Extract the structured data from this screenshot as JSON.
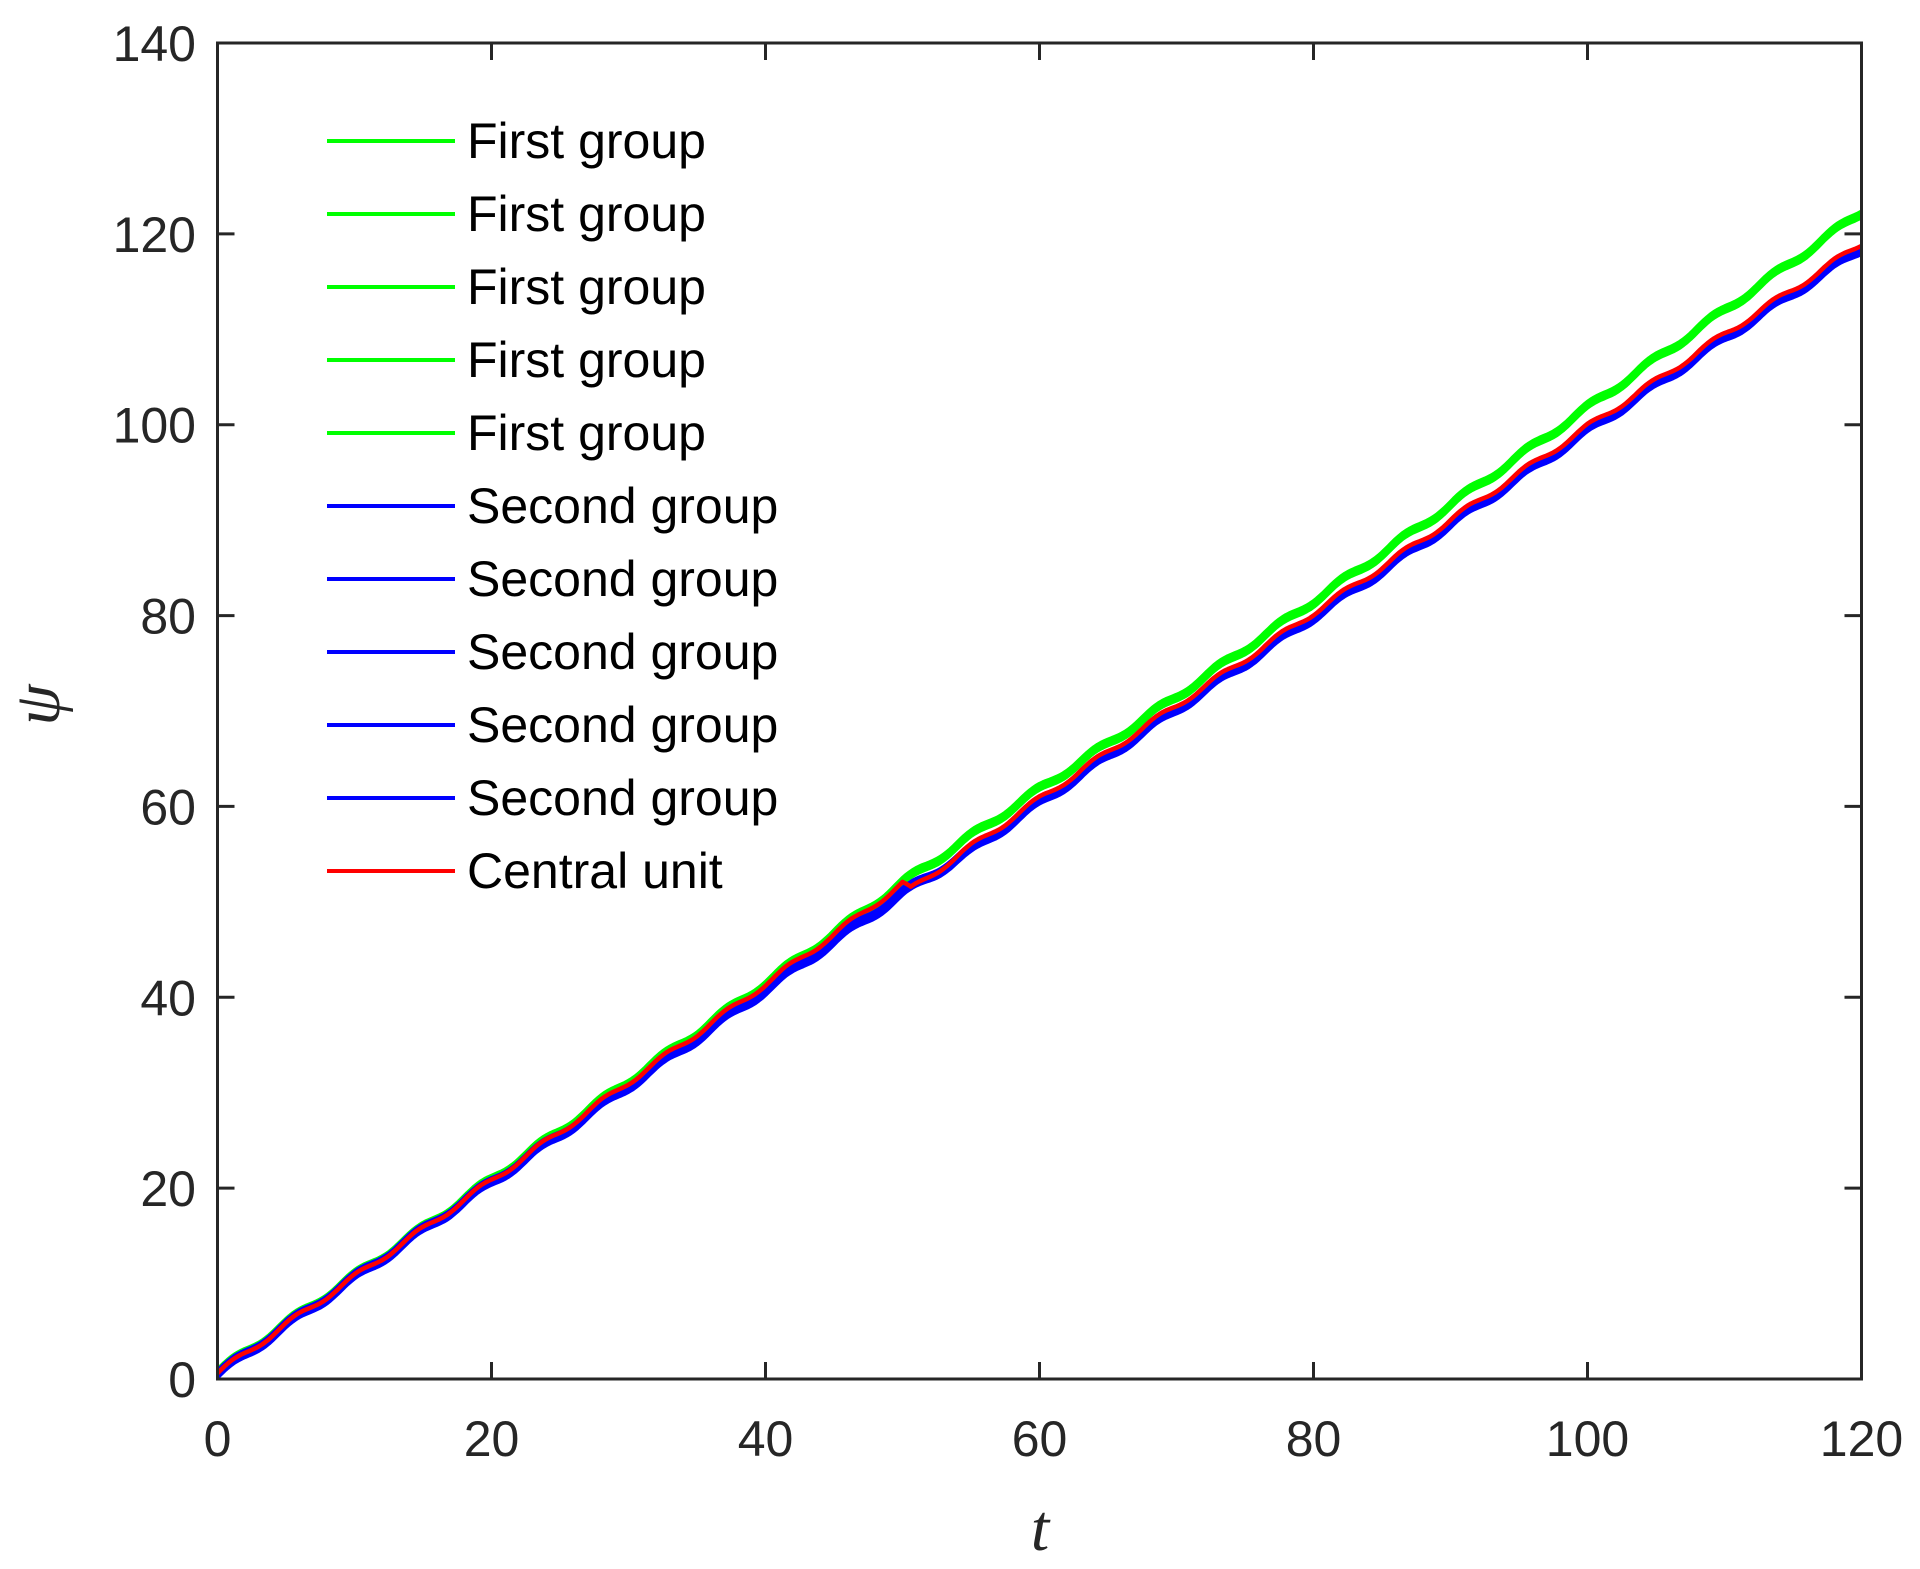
{
  "chart_data": {
    "type": "line",
    "title": "",
    "xlabel": "t",
    "ylabel": "ψ",
    "xlim": [
      0,
      120
    ],
    "ylim": [
      0,
      140
    ],
    "xticks": [
      0,
      20,
      40,
      60,
      80,
      100,
      120
    ],
    "yticks": [
      0,
      20,
      40,
      60,
      80,
      100,
      120,
      140
    ],
    "grid": false,
    "box": true,
    "tick_direction": "in",
    "legend_position": "upper-left-inside",
    "axis_color": "#262626",
    "background_color": "#ffffff",
    "wiggle": {
      "amplitude": 0.3,
      "period": 4.5
    },
    "series": [
      {
        "name": "First group",
        "color": "#00ff00",
        "count": 5,
        "spread": 0.55,
        "points": [
          [
            0,
            0.7
          ],
          [
            5,
            5.8
          ],
          [
            10,
            10.8
          ],
          [
            15,
            15.8
          ],
          [
            20,
            20.9
          ],
          [
            25,
            26.0
          ],
          [
            30,
            31.2
          ],
          [
            35,
            36.3
          ],
          [
            40,
            41.5
          ],
          [
            45,
            46.7
          ],
          [
            50,
            52.0
          ],
          [
            55,
            56.9
          ],
          [
            60,
            61.8
          ],
          [
            65,
            66.6
          ],
          [
            70,
            71.5
          ],
          [
            75,
            76.5
          ],
          [
            80,
            81.5
          ],
          [
            85,
            86.5
          ],
          [
            90,
            91.6
          ],
          [
            95,
            96.7
          ],
          [
            100,
            101.8
          ],
          [
            105,
            106.9
          ],
          [
            110,
            112.0
          ],
          [
            115,
            117.1
          ],
          [
            120,
            122.3
          ]
        ]
      },
      {
        "name": "Second group",
        "color": "#0000ff",
        "count": 5,
        "spread": 0.65,
        "points": [
          [
            0,
            0.5
          ],
          [
            5,
            5.6
          ],
          [
            10,
            10.6
          ],
          [
            15,
            15.6
          ],
          [
            20,
            20.6
          ],
          [
            25,
            25.6
          ],
          [
            30,
            30.7
          ],
          [
            35,
            35.7
          ],
          [
            40,
            40.8
          ],
          [
            45,
            45.9
          ],
          [
            50,
            50.9
          ],
          [
            55,
            55.4
          ],
          [
            60,
            60.4
          ],
          [
            65,
            65.3
          ],
          [
            70,
            70.2
          ],
          [
            75,
            75.0
          ],
          [
            80,
            79.9
          ],
          [
            85,
            84.7
          ],
          [
            90,
            89.6
          ],
          [
            95,
            94.5
          ],
          [
            100,
            99.4
          ],
          [
            105,
            104.2
          ],
          [
            110,
            109.1
          ],
          [
            115,
            113.8
          ],
          [
            120,
            118.5
          ]
        ]
      },
      {
        "name": "Central unit",
        "color": "#ff0000",
        "count": 1,
        "spread": 0,
        "points": [
          [
            0,
            0.6
          ],
          [
            5,
            5.7
          ],
          [
            10,
            10.7
          ],
          [
            15,
            15.7
          ],
          [
            20,
            20.8
          ],
          [
            25,
            25.9
          ],
          [
            30,
            31.1
          ],
          [
            35,
            36.2
          ],
          [
            40,
            41.4
          ],
          [
            45,
            46.6
          ],
          [
            50,
            51.9
          ],
          [
            50.6,
            51.3
          ],
          [
            55,
            55.8
          ],
          [
            60,
            60.8
          ],
          [
            65,
            65.7
          ],
          [
            70,
            70.6
          ],
          [
            75,
            75.4
          ],
          [
            80,
            80.3
          ],
          [
            85,
            85.1
          ],
          [
            90,
            90.0
          ],
          [
            95,
            94.9
          ],
          [
            100,
            99.8
          ],
          [
            105,
            104.6
          ],
          [
            110,
            109.5
          ],
          [
            115,
            114.2
          ],
          [
            120,
            119.0
          ]
        ]
      }
    ],
    "legend": [
      {
        "label": "First group",
        "color": "#00ff00"
      },
      {
        "label": "First group",
        "color": "#00ff00"
      },
      {
        "label": "First group",
        "color": "#00ff00"
      },
      {
        "label": "First group",
        "color": "#00ff00"
      },
      {
        "label": "First group",
        "color": "#00ff00"
      },
      {
        "label": "Second group",
        "color": "#0000ff"
      },
      {
        "label": "Second group",
        "color": "#0000ff"
      },
      {
        "label": "Second group",
        "color": "#0000ff"
      },
      {
        "label": "Second group",
        "color": "#0000ff"
      },
      {
        "label": "Second group",
        "color": "#0000ff"
      },
      {
        "label": "Central unit",
        "color": "#ff0000"
      }
    ]
  }
}
